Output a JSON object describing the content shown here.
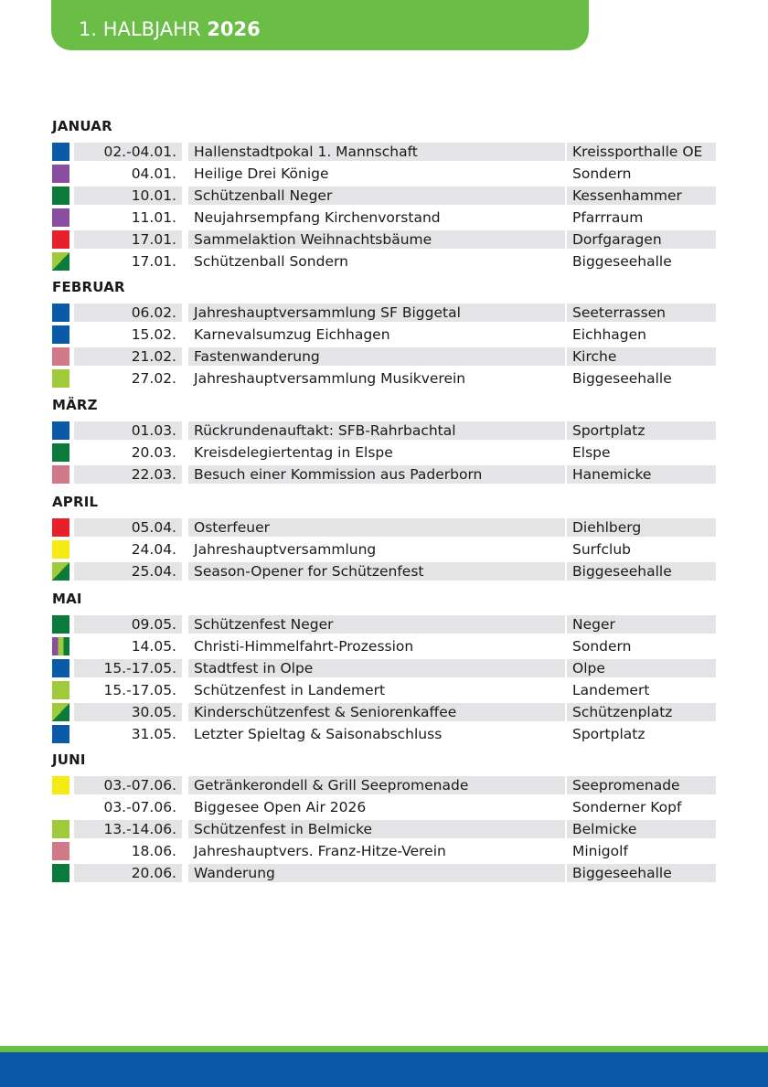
{
  "header": {
    "prefix": "1. HALBJAHR ",
    "year": "2026"
  },
  "colors": {
    "blue": "#0a5aa8",
    "purple": "#8a4ea0",
    "darkgreen": "#0c7a3a",
    "red": "#e8202a",
    "lightgreen": "#9fcb3b",
    "pink": "#cf7a86",
    "yellow": "#f5ea14"
  },
  "months": [
    {
      "name": "JANUAR",
      "rows": [
        {
          "date": "02.-04.01.",
          "event": "Hallenstadtpokal 1. Mannschaft",
          "place": "Kreissporthalle OE",
          "swatch": "blue"
        },
        {
          "date": "04.01.",
          "event": "Heilige Drei Könige",
          "place": "Sondern",
          "swatch": "purple"
        },
        {
          "date": "10.01.",
          "event": "Schützenball Neger",
          "place": "Kessenhammer",
          "swatch": "darkgreen"
        },
        {
          "date": "11.01.",
          "event": "Neujahrsempfang Kirchenvorstand",
          "place": "Pfarrraum",
          "swatch": "purple"
        },
        {
          "date": "17.01.",
          "event": "Sammelaktion Weihnachtsbäume",
          "place": "Dorfgaragen",
          "swatch": "red"
        },
        {
          "date": "17.01.",
          "event": "Schützenball Sondern",
          "place": "Biggeseehalle",
          "swatch": "diagonal-green"
        }
      ]
    },
    {
      "name": "FEBRUAR",
      "rows": [
        {
          "date": "06.02.",
          "event": "Jahreshauptversammlung SF Biggetal",
          "place": "Seeterrassen",
          "swatch": "blue"
        },
        {
          "date": "15.02.",
          "event": "Karnevalsumzug Eichhagen",
          "place": "Eichhagen",
          "swatch": "blue"
        },
        {
          "date": "21.02.",
          "event": "Fastenwanderung",
          "place": "Kirche",
          "swatch": "pink"
        },
        {
          "date": "27.02.",
          "event": "Jahreshauptversammlung Musikverein",
          "place": "Biggeseehalle",
          "swatch": "lightgreen"
        }
      ]
    },
    {
      "name": "MÄRZ",
      "rows": [
        {
          "date": "01.03.",
          "event": "Rückrundenauftakt: SFB-Rahrbachtal",
          "place": "Sportplatz",
          "swatch": "blue"
        },
        {
          "date": "20.03.",
          "event": "Kreisdelegiertentag in Elspe",
          "place": "Elspe",
          "swatch": "darkgreen"
        },
        {
          "date": "22.03.",
          "event": "Besuch einer Kommission aus Paderborn",
          "place": "Hanemicke",
          "swatch": "pink"
        }
      ]
    },
    {
      "name": "APRIL",
      "rows": [
        {
          "date": "05.04.",
          "event": "Osterfeuer",
          "place": "Diehlberg",
          "swatch": "red"
        },
        {
          "date": "24.04.",
          "event": "Jahreshauptversammlung",
          "place": "Surfclub",
          "swatch": "yellow"
        },
        {
          "date": "25.04.",
          "event": "Season-Opener for Schützenfest",
          "place": "Biggeseehalle",
          "swatch": "diagonal-green"
        }
      ]
    },
    {
      "name": "MAI",
      "rows": [
        {
          "date": "09.05.",
          "event": "Schützenfest Neger",
          "place": "Neger",
          "swatch": "darkgreen"
        },
        {
          "date": "14.05.",
          "event": "Christi-Himmelfahrt-Prozession",
          "place": "Sondern",
          "swatch": "stripes"
        },
        {
          "date": "15.-17.05.",
          "event": "Stadtfest in Olpe",
          "place": "Olpe",
          "swatch": "blue"
        },
        {
          "date": "15.-17.05.",
          "event": "Schützenfest in Landemert",
          "place": "Landemert",
          "swatch": "lightgreen"
        },
        {
          "date": "30.05.",
          "event": "Kinderschützenfest & Seniorenkaffee",
          "place": "Schützenplatz",
          "swatch": "diagonal-green"
        },
        {
          "date": "31.05.",
          "event": "Letzter Spieltag & Saisonabschluss",
          "place": "Sportplatz",
          "swatch": "blue"
        }
      ]
    },
    {
      "name": "JUNI",
      "rows": [
        {
          "date": "03.-07.06.",
          "event": "Getränkerondell & Grill Seepromenade",
          "place": "Seepromenade",
          "swatch": "yellow"
        },
        {
          "date": "03.-07.06.",
          "event": "Biggesee Open Air 2026",
          "place": "Sonderner Kopf",
          "swatch": "none"
        },
        {
          "date": "13.-14.06.",
          "event": "Schützenfest in Belmicke",
          "place": "Belmicke",
          "swatch": "lightgreen"
        },
        {
          "date": "18.06.",
          "event": "Jahreshauptvers. Franz-Hitze-Verein",
          "place": "Minigolf",
          "swatch": "pink"
        },
        {
          "date": "20.06.",
          "event": "Wanderung",
          "place": "Biggeseehalle",
          "swatch": "darkgreen"
        }
      ]
    }
  ]
}
